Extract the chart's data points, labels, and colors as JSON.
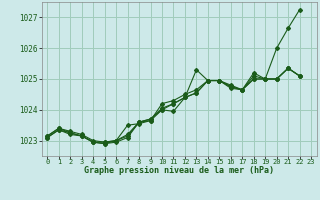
{
  "background_color": "#cde9e9",
  "grid_color": "#a0ccbb",
  "line_color": "#1a5c1a",
  "xlabel": "Graphe pression niveau de la mer (hPa)",
  "ylim": [
    1022.5,
    1027.5
  ],
  "xlim": [
    -0.5,
    23.5
  ],
  "yticks": [
    1023,
    1024,
    1025,
    1026,
    1027
  ],
  "xticks": [
    0,
    1,
    2,
    3,
    4,
    5,
    6,
    7,
    8,
    9,
    10,
    11,
    12,
    13,
    14,
    15,
    16,
    17,
    18,
    19,
    20,
    21,
    22,
    23
  ],
  "line1": [
    1023.1,
    1023.35,
    1023.25,
    1023.15,
    1022.95,
    1022.9,
    1023.0,
    1023.5,
    1023.55,
    1023.65,
    1024.0,
    1023.95,
    1024.4,
    1025.3,
    1024.95,
    1024.95,
    1024.7,
    1024.65,
    1025.2,
    1025.0,
    1026.0,
    1026.65,
    1027.25,
    null
  ],
  "line2": [
    1023.1,
    1023.35,
    1023.2,
    1023.15,
    1022.95,
    1022.9,
    1022.95,
    1023.1,
    1023.6,
    1023.65,
    1024.2,
    1024.3,
    1024.5,
    1024.65,
    1024.95,
    1024.95,
    1024.8,
    1024.65,
    1025.1,
    1025.0,
    1025.0,
    1025.35,
    1025.1,
    null
  ],
  "line3": [
    1023.15,
    1023.4,
    1023.3,
    1023.2,
    1023.0,
    1022.95,
    1023.0,
    1023.2,
    1023.6,
    1023.7,
    1024.0,
    1024.2,
    1024.4,
    1024.55,
    1024.95,
    1024.95,
    1024.75,
    1024.65,
    1025.0,
    1025.0,
    1025.0,
    1025.35,
    1025.1,
    null
  ],
  "line4": [
    1023.15,
    1023.4,
    1023.25,
    1023.15,
    1022.95,
    1022.95,
    1023.0,
    1023.15,
    1023.6,
    1023.7,
    1024.05,
    1024.2,
    1024.4,
    1024.55,
    1024.95,
    1024.95,
    1024.75,
    1024.65,
    1025.0,
    1025.0,
    1025.0,
    1025.35,
    1025.1,
    null
  ]
}
